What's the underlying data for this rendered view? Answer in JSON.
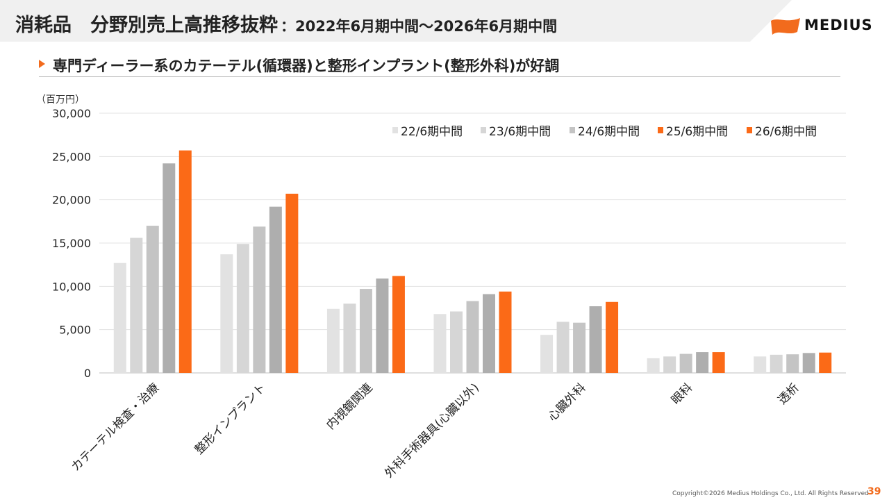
{
  "header": {
    "title_main": "消耗品　分野別売上高推移抜粋",
    "title_sub": "：2022年6月期中間～2026年6月期中間",
    "logo_text": "MEDIUS"
  },
  "subheading": "専門ディーラー系のカテーテル(循環器)と整形インプラント(整形外科)が好調",
  "footer": {
    "copyright": "Copyright©2026 Medius Holdings Co., Ltd. All Rights Reserved",
    "page_number": "39"
  },
  "colors": {
    "accent": "#f26b1d",
    "header_band": "#f0f0f0"
  },
  "chart_data": {
    "type": "bar",
    "unit_label": "（百万円）",
    "ylim": [
      0,
      30000
    ],
    "yticks": [
      0,
      5000,
      10000,
      15000,
      20000,
      25000,
      30000
    ],
    "ytick_labels": [
      "0",
      "5,000",
      "10,000",
      "15,000",
      "20,000",
      "25,000",
      "30,000"
    ],
    "grid": true,
    "legend_position": "top-right",
    "categories": [
      "カテーテル検査・治療",
      "整形インプラント",
      "内視鏡関連",
      "外科手術器具(心臓以外)",
      "心臓外科",
      "眼科",
      "透析"
    ],
    "series": [
      {
        "name": "22/6期中間",
        "color": "#e2e2e2",
        "values": [
          12700,
          13700,
          7400,
          6800,
          4400,
          1700,
          1900
        ]
      },
      {
        "name": "23/6期中間",
        "color": "#d6d6d6",
        "values": [
          15600,
          14900,
          8000,
          7100,
          5900,
          1900,
          2100
        ]
      },
      {
        "name": "24/6期中間",
        "color": "#c4c4c4",
        "values": [
          17000,
          16900,
          9700,
          8300,
          5800,
          2200,
          2150
        ]
      },
      {
        "name": "25/6期中間",
        "color": "#aeaeae",
        "values": [
          24200,
          19200,
          10900,
          9100,
          7700,
          2400,
          2300
        ]
      },
      {
        "name": "26/6期中間",
        "color": "#fb6a17",
        "values": [
          25700,
          20700,
          11200,
          9400,
          8200,
          2400,
          2350
        ]
      }
    ],
    "legend_markers": [
      "#e2e2e2",
      "#d6d6d6",
      "#c4c4c4",
      "#fb6a17",
      "#fb6a17"
    ]
  }
}
